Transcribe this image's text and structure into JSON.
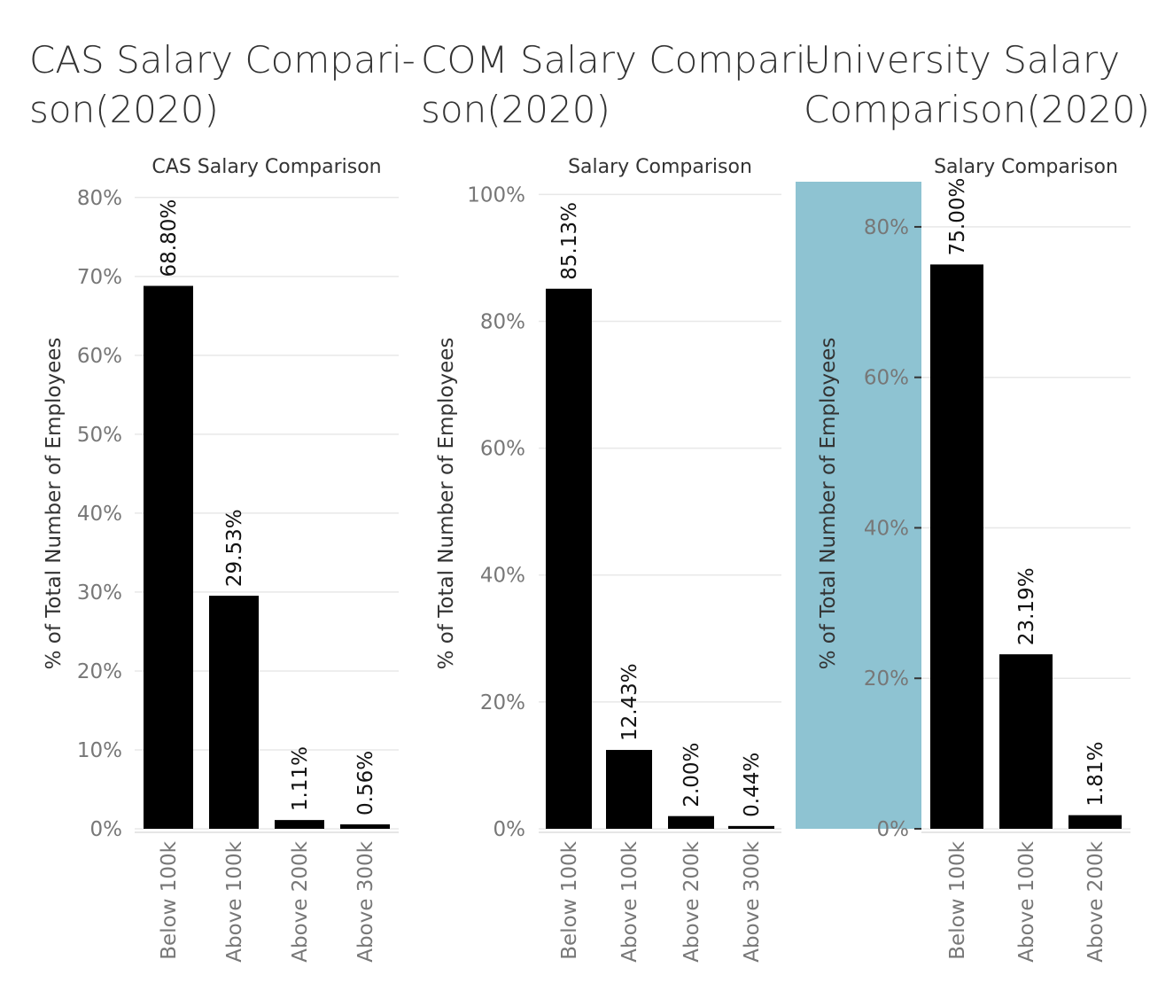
{
  "dashboard": {
    "titles": [
      "CAS Salary Compari-\nson(2020)",
      "COM Salary Compari-\nson(2020)",
      "University Salary\nComparison(2020)"
    ]
  },
  "colors": {
    "bar": "#000000",
    "highlight": "#8ec3d2"
  },
  "chart_data": [
    {
      "type": "bar",
      "title": "CAS Salary Comparison",
      "ylabel": "% of Total Number of Employees",
      "xlabel": "",
      "categories": [
        "Below 100k",
        "Above 100k",
        "Above 200k",
        "Above 300k"
      ],
      "values": [
        68.8,
        29.53,
        1.11,
        0.56
      ],
      "data_labels": [
        "68.80%",
        "29.53%",
        "1.11%",
        "0.56%"
      ],
      "ylim": [
        0,
        82
      ],
      "yticks": [
        0,
        10,
        20,
        30,
        40,
        50,
        60,
        70,
        80
      ],
      "ytick_labels": [
        "0%",
        "10%",
        "20%",
        "30%",
        "40%",
        "50%",
        "60%",
        "70%",
        "80%"
      ],
      "grid": true
    },
    {
      "type": "bar",
      "title": "Salary Comparison",
      "ylabel": "% of Total Number of Employees",
      "xlabel": "",
      "categories": [
        "Below 100k",
        "Above 100k",
        "Above 200k",
        "Above 300k"
      ],
      "values": [
        85.13,
        12.43,
        2.0,
        0.44
      ],
      "data_labels": [
        "85.13%",
        "12.43%",
        "2.00%",
        "0.44%"
      ],
      "ylim": [
        0,
        102
      ],
      "yticks": [
        0,
        20,
        40,
        60,
        80,
        100
      ],
      "ytick_labels": [
        "0%",
        "20%",
        "40%",
        "60%",
        "80%",
        "100%"
      ],
      "grid": true
    },
    {
      "type": "bar",
      "title": "Salary Comparison",
      "ylabel": "% of Total Number of Employees",
      "xlabel": "",
      "categories": [
        "Below 100k",
        "Above 100k",
        "Above 200k"
      ],
      "values": [
        75.0,
        23.19,
        1.81
      ],
      "data_labels": [
        "75.00%",
        "23.19%",
        "1.81%"
      ],
      "ylim": [
        0,
        86
      ],
      "yticks": [
        0,
        20,
        40,
        60,
        80
      ],
      "ytick_labels": [
        "0%",
        "20%",
        "40%",
        "60%",
        "80%"
      ],
      "grid": true,
      "axis_highlighted": true
    }
  ]
}
